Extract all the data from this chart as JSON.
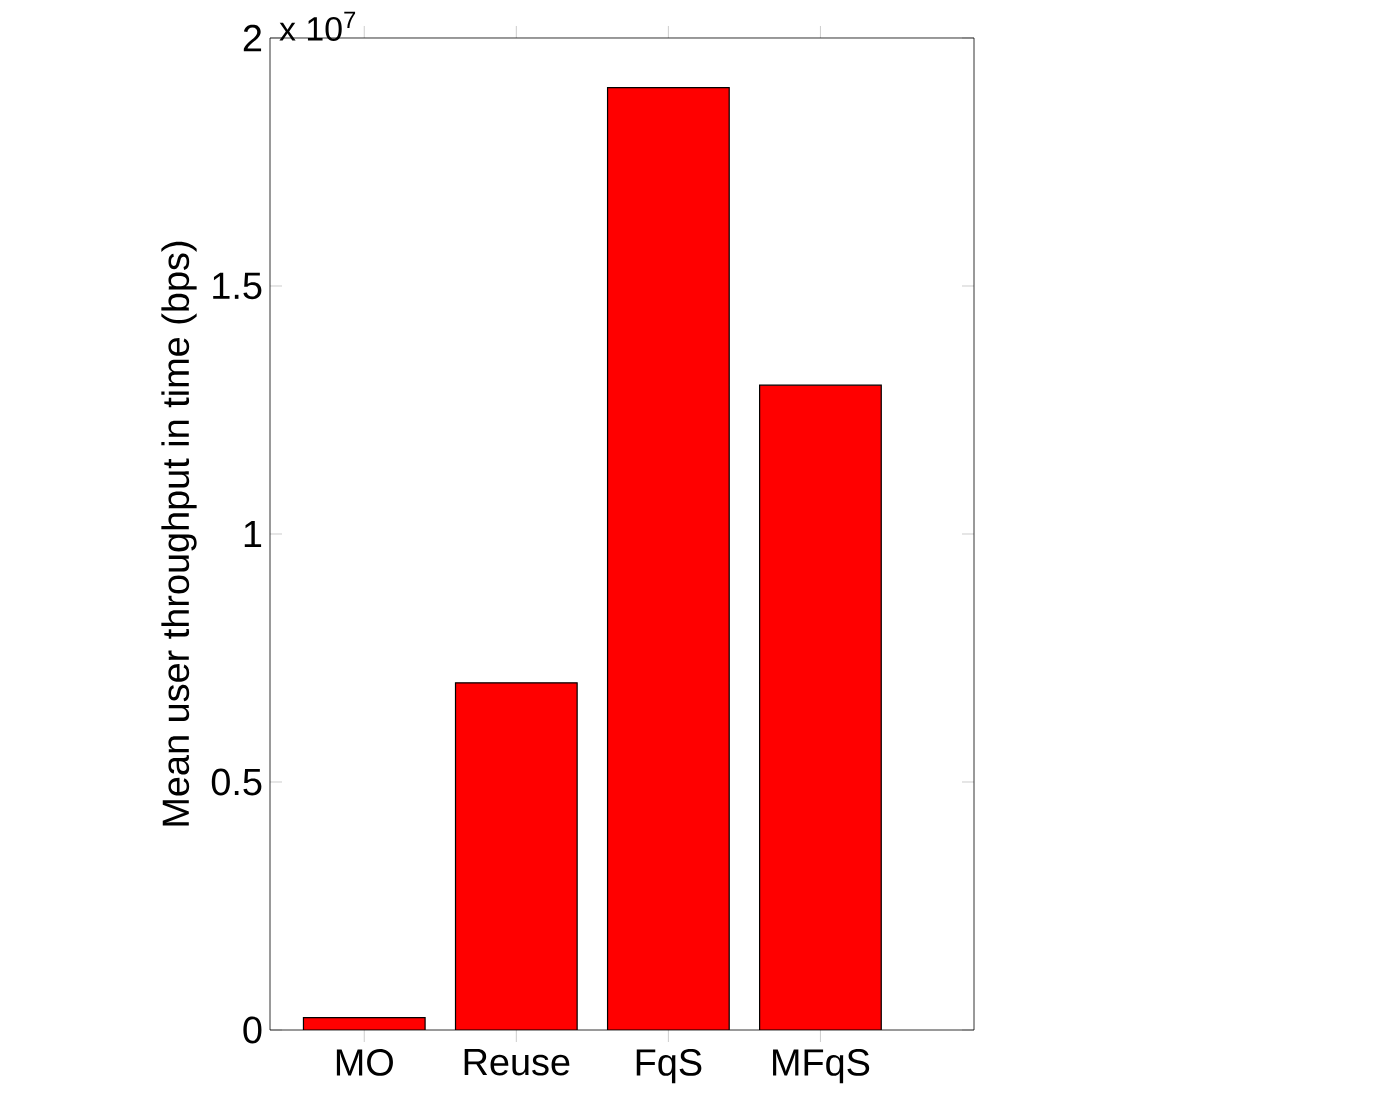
{
  "chart_data": {
    "type": "bar",
    "ylabel": "Mean user throughput in time (bps)",
    "categories": [
      "MO",
      "Reuse",
      "FqS",
      "MFqS"
    ],
    "values": [
      0.025,
      0.7,
      1.9,
      1.3
    ],
    "color": "#ff0000",
    "ylim": [
      0,
      2
    ],
    "yticks": [
      0,
      0.5,
      1,
      1.5,
      2
    ],
    "annotations": [
      "x 10$^{7}$"
    ],
    "grid": false
  }
}
